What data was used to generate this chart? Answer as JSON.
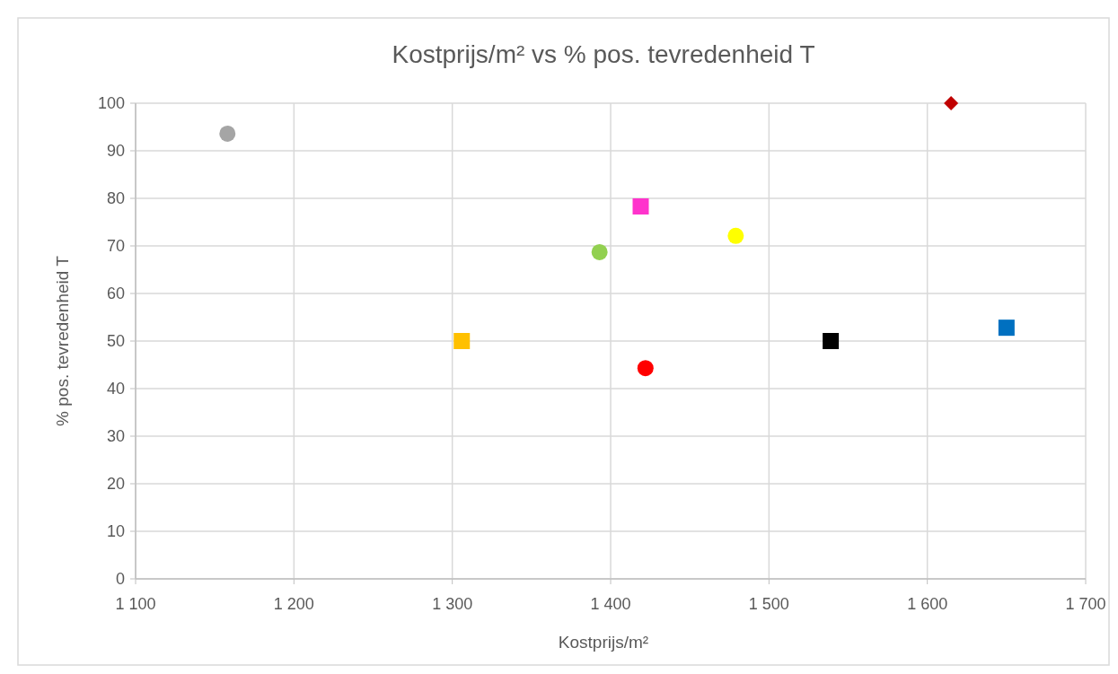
{
  "chart_data": {
    "type": "scatter",
    "title": "Kostprijs/m² vs % pos. tevredenheid T",
    "xlabel": "Kostprijs/m²",
    "ylabel": "% pos. tevredenheid T",
    "xlim": [
      1100,
      1700
    ],
    "xticks": [
      {
        "value": 1100,
        "label": "1 100"
      },
      {
        "value": 1200,
        "label": "1 200"
      },
      {
        "value": 1300,
        "label": "1 300"
      },
      {
        "value": 1400,
        "label": "1 400"
      },
      {
        "value": 1500,
        "label": "1 500"
      },
      {
        "value": 1600,
        "label": "1 600"
      },
      {
        "value": 1700,
        "label": "1 700"
      }
    ],
    "ylim": [
      0,
      100
    ],
    "yticks": [
      0,
      10,
      20,
      30,
      40,
      50,
      60,
      70,
      80,
      90,
      100
    ],
    "grid": true,
    "series": [
      {
        "color": "#a5a5a5",
        "marker": "circle",
        "x": [
          1158
        ],
        "values": [
          93.6
        ]
      },
      {
        "color": "#ffc000",
        "marker": "square",
        "x": [
          1306
        ],
        "values": [
          50
        ]
      },
      {
        "color": "#92d050",
        "marker": "circle",
        "x": [
          1393
        ],
        "values": [
          68.7
        ]
      },
      {
        "color": "#ff33cc",
        "marker": "square",
        "x": [
          1419
        ],
        "values": [
          78.3
        ]
      },
      {
        "color": "#ff0000",
        "marker": "circle",
        "x": [
          1422
        ],
        "values": [
          44.3
        ]
      },
      {
        "color": "#ffff00",
        "marker": "circle",
        "x": [
          1479
        ],
        "values": [
          72.1
        ]
      },
      {
        "color": "#000000",
        "marker": "square",
        "x": [
          1539
        ],
        "values": [
          50
        ]
      },
      {
        "color": "#0070c0",
        "marker": "square",
        "x": [
          1650
        ],
        "values": [
          52.8
        ]
      },
      {
        "color": "#c00000",
        "marker": "diamond",
        "x": [
          1615
        ],
        "values": [
          100
        ]
      }
    ]
  }
}
